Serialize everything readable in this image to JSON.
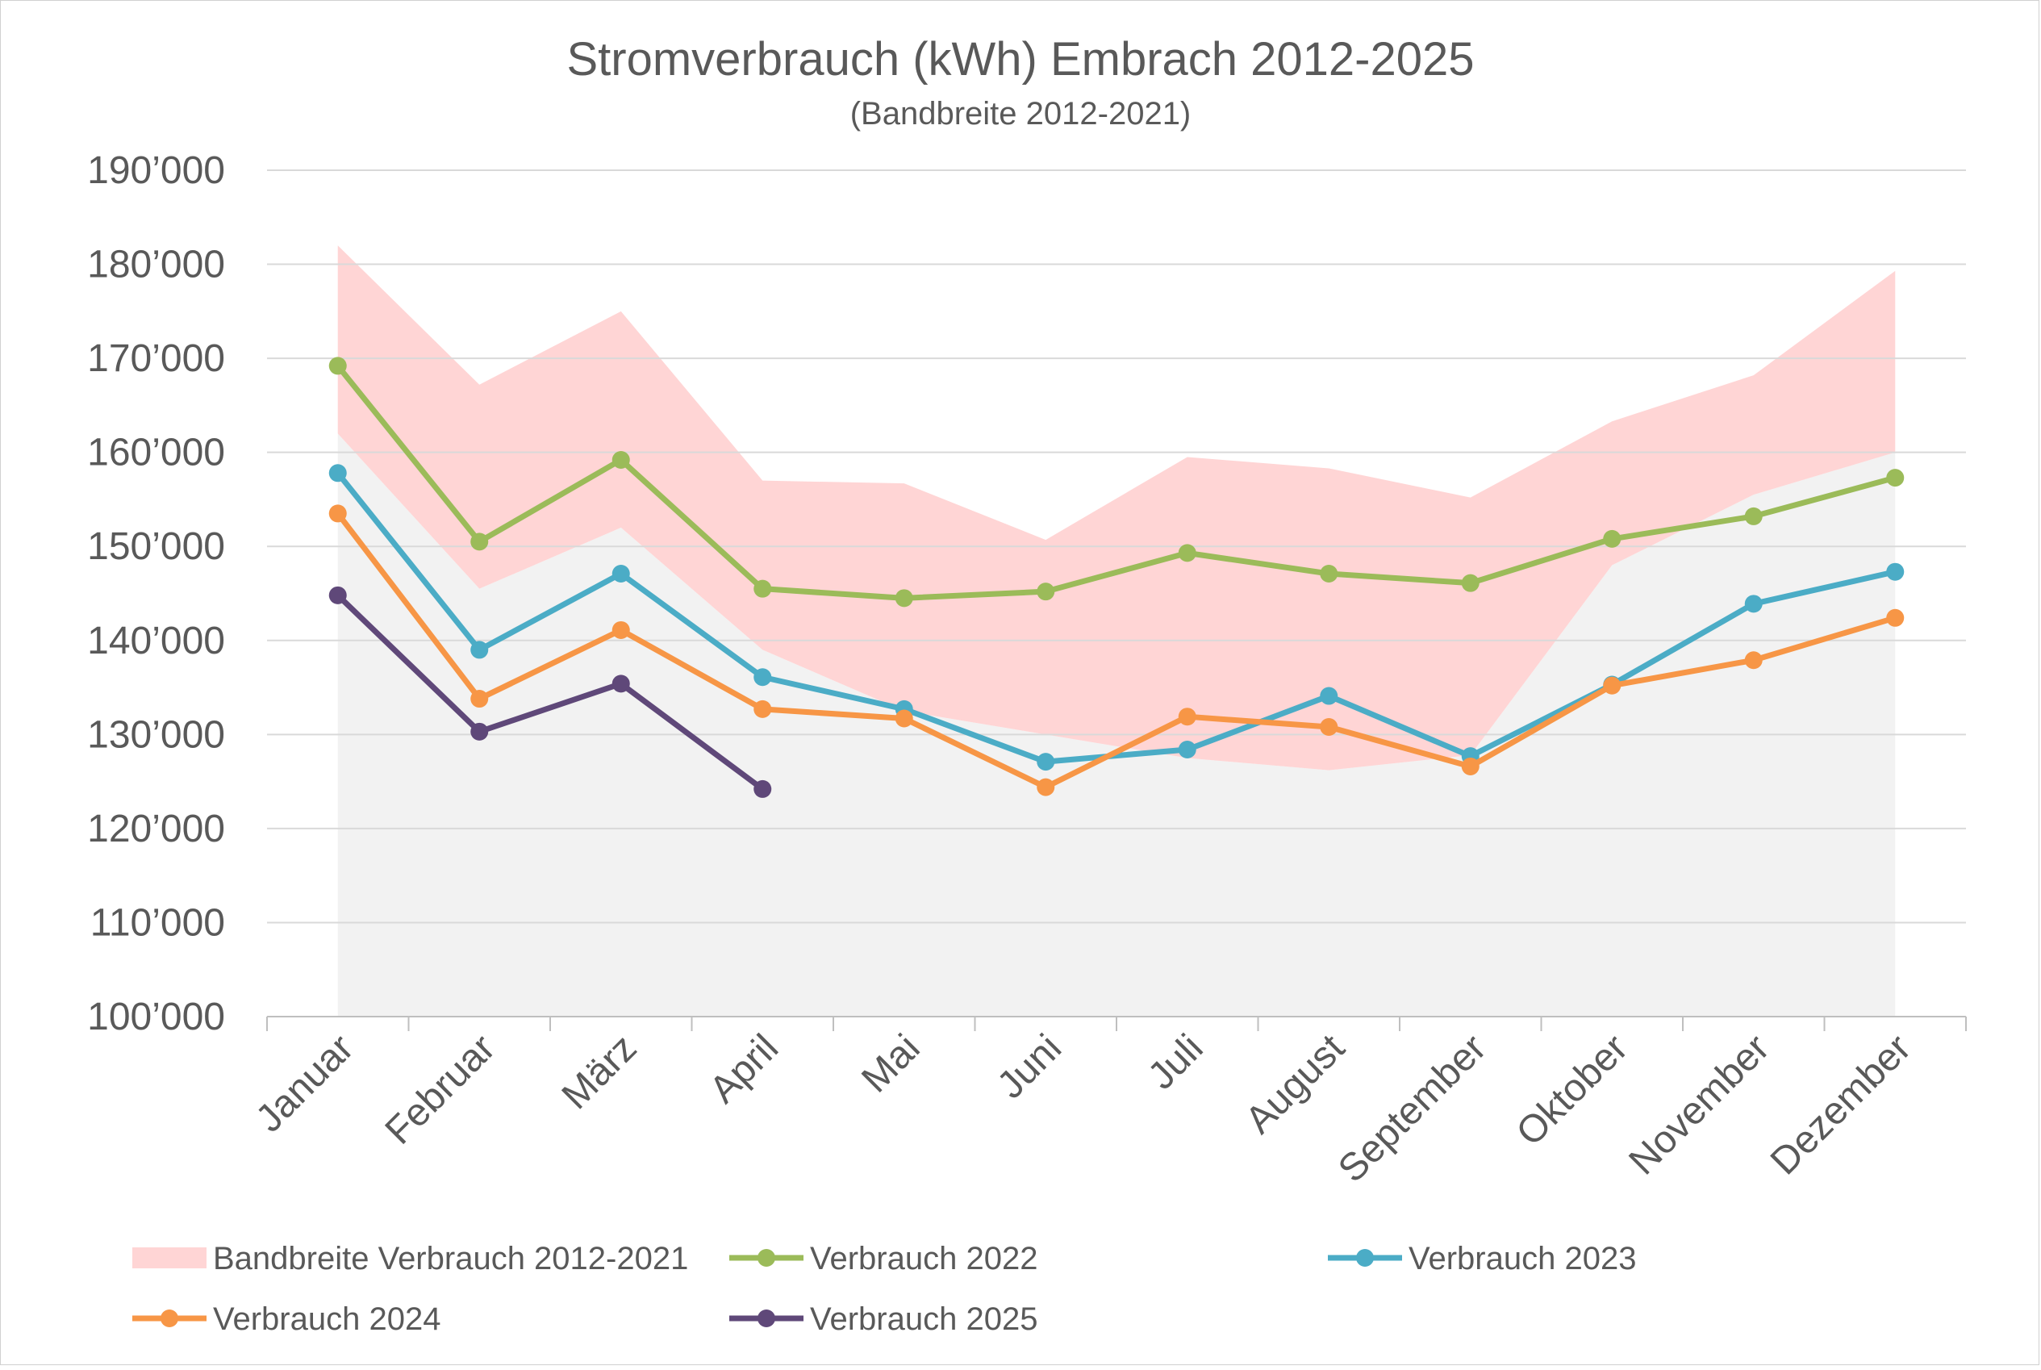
{
  "chart_data": {
    "type": "line",
    "title": "Stromverbrauch (kWh) Embrach 2012-2025",
    "subtitle": "(Bandbreite 2012-2021)",
    "xlabel": "",
    "ylabel": "",
    "ylim": [
      100000,
      190000
    ],
    "y_ticks": [
      100000,
      110000,
      120000,
      130000,
      140000,
      150000,
      160000,
      170000,
      180000,
      190000
    ],
    "y_tick_labels": [
      "100’000",
      "110’000",
      "120’000",
      "130’000",
      "140’000",
      "150’000",
      "160’000",
      "170’000",
      "180’000",
      "190’000"
    ],
    "grid": true,
    "legend_position": "bottom",
    "categories": [
      "Januar",
      "Februar",
      "März",
      "April",
      "Mai",
      "Juni",
      "Juli",
      "August",
      "September",
      "Oktober",
      "November",
      "Dezember"
    ],
    "band": {
      "name": "Bandbreite Verbrauch 2012-2021",
      "color": "#ffd5d5",
      "lower": [
        162000,
        145500,
        152000,
        139000,
        132500,
        130000,
        127500,
        126200,
        127800,
        148000,
        155500,
        160000
      ],
      "upper": [
        182000,
        167200,
        175000,
        157000,
        156700,
        150700,
        159500,
        158300,
        155200,
        163300,
        168200,
        179300
      ]
    },
    "below_band_color": "#f2f2f2",
    "series": [
      {
        "name": "Verbrauch 2022",
        "color": "#9bbb59",
        "values": [
          169200,
          150500,
          159200,
          145500,
          144500,
          145200,
          149300,
          147100,
          146100,
          150800,
          153200,
          157300
        ]
      },
      {
        "name": "Verbrauch 2023",
        "color": "#4bacc6",
        "values": [
          157800,
          139000,
          147100,
          136100,
          132700,
          127100,
          128400,
          134100,
          127700,
          135300,
          143900,
          147300
        ]
      },
      {
        "name": "Verbrauch 2024",
        "color": "#f79646",
        "values": [
          153500,
          133800,
          141100,
          132700,
          131700,
          124400,
          131900,
          130800,
          126600,
          135200,
          137900,
          142400
        ]
      },
      {
        "name": "Verbrauch 2025",
        "color": "#5f4879",
        "values": [
          144800,
          130300,
          135400,
          124200,
          null,
          null,
          null,
          null,
          null,
          null,
          null,
          null
        ]
      }
    ]
  }
}
